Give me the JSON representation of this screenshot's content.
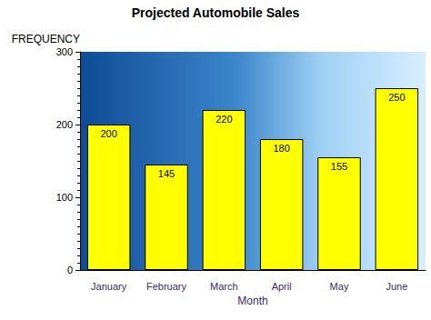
{
  "chart_data": {
    "type": "bar",
    "title": "Projected Automobile Sales",
    "x_label": "Month",
    "y_label": "FREQUENCY",
    "categories": [
      "January",
      "February",
      "March",
      "April",
      "May",
      "June"
    ],
    "values": [
      200,
      145,
      220,
      180,
      155,
      250
    ],
    "color": "#ffff00",
    "ylim": [
      0,
      300
    ],
    "yticks": [
      0,
      100,
      200,
      300
    ],
    "grid": false,
    "data_labels": true
  }
}
